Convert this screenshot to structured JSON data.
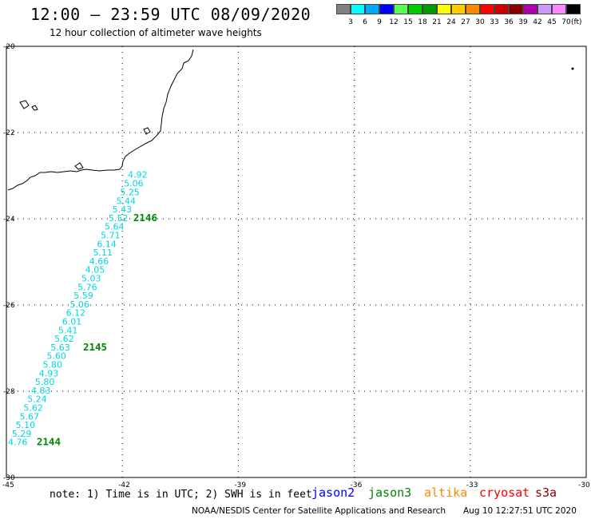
{
  "header": {
    "title": "12:00 – 23:59 UTC 08/09/2020",
    "subtitle": "12 hour collection of altimeter wave heights"
  },
  "color_scale": {
    "unit": "(ft)",
    "labels": [
      "3",
      "6",
      "9",
      "12",
      "15",
      "18",
      "21",
      "24",
      "27",
      "30",
      "33",
      "36",
      "39",
      "42",
      "45",
      "70"
    ],
    "colors": [
      "#808080",
      "#00ffff",
      "#00a8ff",
      "#0000ff",
      "#55ff55",
      "#00cc00",
      "#009900",
      "#ffff00",
      "#ffcc00",
      "#ff8800",
      "#ff0000",
      "#cc0000",
      "#880000",
      "#aa00aa",
      "#cc99ff",
      "#ff88ff",
      "#000000"
    ]
  },
  "map": {
    "lat_labels": [
      "-20",
      "-22",
      "-24",
      "-26",
      "-28",
      "-30"
    ],
    "lon_labels": [
      "-45",
      "-42",
      "-39",
      "-36",
      "-33",
      "-30"
    ],
    "bounds": {
      "lon_min": -45,
      "lon_max": -30,
      "lat_min": -30,
      "lat_max": -20
    }
  },
  "wave_heights": [
    {
      "value": "4.92",
      "lon": -41.9,
      "lat": -22.97
    },
    {
      "value": "5.06",
      "lon": -42.0,
      "lat": -23.18
    },
    {
      "value": "5.25",
      "lon": -42.1,
      "lat": -23.38
    },
    {
      "value": "5.44",
      "lon": -42.2,
      "lat": -23.58
    },
    {
      "value": "5.43",
      "lon": -42.3,
      "lat": -23.78
    },
    {
      "value": "5.52",
      "lon": -42.4,
      "lat": -23.98
    },
    {
      "value": "5.64",
      "lon": -42.5,
      "lat": -24.18
    },
    {
      "value": "5.71",
      "lon": -42.6,
      "lat": -24.38
    },
    {
      "value": "6.14",
      "lon": -42.7,
      "lat": -24.58
    },
    {
      "value": "5.11",
      "lon": -42.8,
      "lat": -24.78
    },
    {
      "value": "4.66",
      "lon": -42.9,
      "lat": -24.98
    },
    {
      "value": "4.05",
      "lon": -43.0,
      "lat": -25.18
    },
    {
      "value": "5.03",
      "lon": -43.1,
      "lat": -25.38
    },
    {
      "value": "5.76",
      "lon": -43.2,
      "lat": -25.58
    },
    {
      "value": "5.59",
      "lon": -43.3,
      "lat": -25.78
    },
    {
      "value": "5.06",
      "lon": -43.4,
      "lat": -25.98
    },
    {
      "value": "6.12",
      "lon": -43.5,
      "lat": -26.18
    },
    {
      "value": "6.01",
      "lon": -43.6,
      "lat": -26.38
    },
    {
      "value": "5.41",
      "lon": -43.7,
      "lat": -26.58
    },
    {
      "value": "5.62",
      "lon": -43.8,
      "lat": -26.78
    },
    {
      "value": "5.63",
      "lon": -43.9,
      "lat": -26.98
    },
    {
      "value": "5.60",
      "lon": -44.0,
      "lat": -27.18
    },
    {
      "value": "5.80",
      "lon": -44.1,
      "lat": -27.38
    },
    {
      "value": "4.93",
      "lon": -44.2,
      "lat": -27.58
    },
    {
      "value": "5.80",
      "lon": -44.3,
      "lat": -27.78
    },
    {
      "value": "4.83",
      "lon": -44.4,
      "lat": -27.98
    },
    {
      "value": "5.24",
      "lon": -44.5,
      "lat": -28.18
    },
    {
      "value": "5.62",
      "lon": -44.6,
      "lat": -28.38
    },
    {
      "value": "5.67",
      "lon": -44.7,
      "lat": -28.58
    },
    {
      "value": "5.10",
      "lon": -44.8,
      "lat": -28.78
    },
    {
      "value": "5.29",
      "lon": -44.9,
      "lat": -28.98
    },
    {
      "value": "4.76",
      "lon": -45.0,
      "lat": -29.18
    }
  ],
  "pass_times": [
    {
      "label": "2146",
      "lon": -41.8,
      "lat": -23.98
    },
    {
      "label": "2145",
      "lon": -43.1,
      "lat": -26.98
    },
    {
      "label": "2144",
      "lon": -44.3,
      "lat": -29.18
    }
  ],
  "note": "note: 1) Time is in UTC; 2) SWH is in feet",
  "satellites": [
    {
      "name": "jason2",
      "color": "#0000ff"
    },
    {
      "name": "jason3",
      "color": "#008800"
    },
    {
      "name": "altika",
      "color": "#ff8800"
    },
    {
      "name": "cryosat",
      "color": "#ff0000"
    },
    {
      "name": "s3a",
      "color": "#880000"
    }
  ],
  "footer": {
    "credit": "NOAA/NESDIS Center for Satellite Applications and Research",
    "timestamp": "Aug 10 12:27:51 UTC 2020"
  }
}
